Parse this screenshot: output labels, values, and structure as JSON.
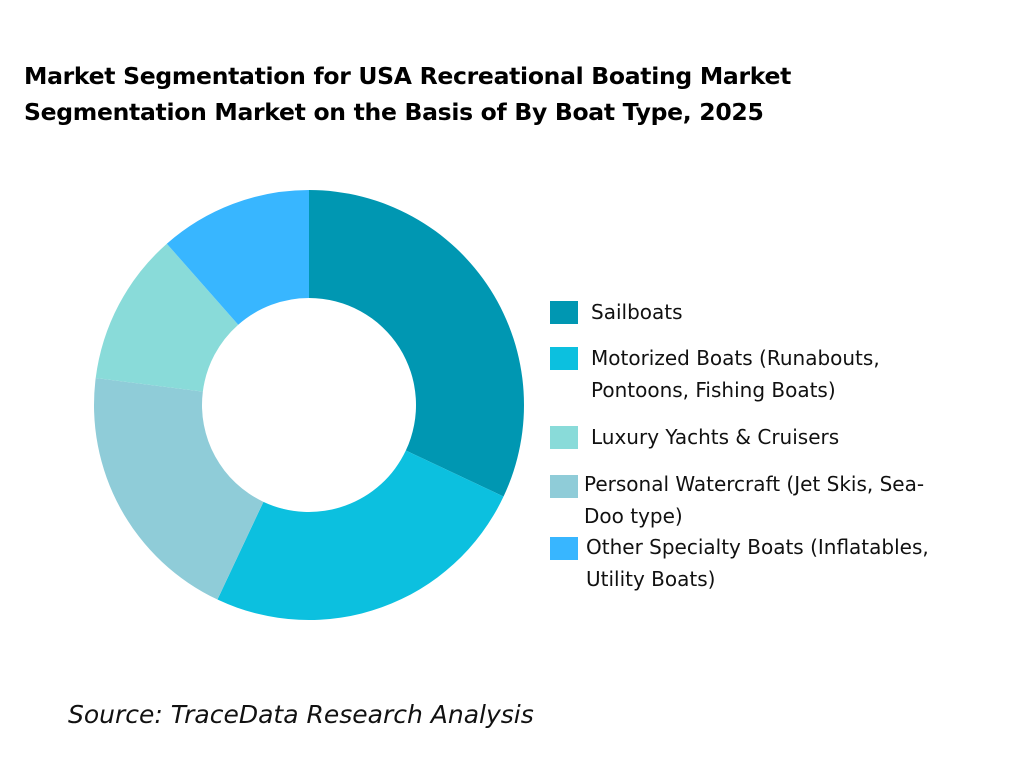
{
  "header": {
    "title_line1": "Market Segmentation for USA Recreational Boating Market",
    "title_line2": "Segmentation Market on the Basis of By Boat Type, 2025"
  },
  "legend": {
    "items": [
      {
        "label_line1": "Sailboats",
        "label_line2": "",
        "color": "#0097B2"
      },
      {
        "label_line1": "Motorized Boats (Runabouts,",
        "label_line2": "Pontoons, Fishing Boats)",
        "color": "#0CC0DF"
      },
      {
        "label_line1": "Luxury Yachts & Cruisers",
        "label_line2": "",
        "color": "#89DBD9"
      },
      {
        "label_line1": "Personal Watercraft (Jet Skis, Sea-",
        "label_line2": "Doo type)",
        "color": "#8FCCD8"
      },
      {
        "label_line1": "Other Specialty Boats (Inflatables,",
        "label_line2": "Utility Boats)",
        "color": "#38B6FF"
      }
    ]
  },
  "footer": {
    "source": "Source: TraceData Research Analysis"
  },
  "chart_data": {
    "type": "pie",
    "subtype": "donut",
    "title": "Market Segmentation for USA Recreational Boating Market Segmentation Market on the Basis of By Boat Type, 2025",
    "categories": [
      "Sailboats",
      "Motorized Boats (Runabouts, Pontoons, Fishing Boats)",
      "Personal Watercraft (Jet Skis, Sea-Doo type)",
      "Luxury Yachts & Cruisers",
      "Other Specialty Boats (Inflatables, Utility Boats)"
    ],
    "values": [
      32,
      25,
      20,
      11.5,
      11.5
    ],
    "unit": "% share (estimated from slice angles)",
    "colors": [
      "#0097B2",
      "#0CC0DF",
      "#8FCCD8",
      "#89DBD9",
      "#38B6FF"
    ],
    "slice_order": "clockwise from 12 o'clock",
    "legend_position": "right",
    "data_labels": false,
    "source": "Source: TraceData Research Analysis"
  }
}
